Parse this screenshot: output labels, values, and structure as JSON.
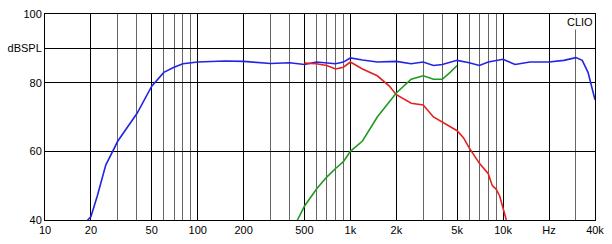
{
  "chart_data": {
    "type": "line",
    "log": "x",
    "grid": true,
    "xlim": [
      10,
      40000
    ],
    "xticks": [
      10,
      20,
      50,
      100,
      200,
      500,
      {
        "value": 1000,
        "label": "1k"
      },
      {
        "value": 2000,
        "label": "2k"
      },
      {
        "value": 5000,
        "label": "5k"
      },
      {
        "value": 10000,
        "label": "10k"
      },
      {
        "value": 20000,
        "label": "Hz"
      },
      {
        "value": 40000,
        "label": "40k"
      }
    ],
    "ylim": [
      40,
      100
    ],
    "yticks": [
      40,
      60,
      80,
      {
        "value": 90,
        "label": "dBSPL"
      },
      100
    ],
    "annotations": [
      {
        "text": "CLIO"
      }
    ],
    "series": [
      {
        "color": "#2323e6",
        "x": [
          19,
          20,
          22,
          25,
          30,
          40,
          50,
          60,
          70,
          80,
          100,
          150,
          200,
          300,
          400,
          500,
          600,
          700,
          800,
          900,
          1000,
          1200,
          1500,
          2000,
          2500,
          3000,
          3500,
          4000,
          5000,
          6000,
          7000,
          8000,
          10000,
          12000,
          15000,
          20000,
          25000,
          30000,
          33000,
          36000,
          40000
        ],
        "values": [
          40,
          41,
          47,
          56,
          63,
          71,
          79,
          83,
          84.5,
          85.5,
          86,
          86.3,
          86.2,
          85.6,
          85.8,
          85.3,
          86,
          85.8,
          85.5,
          86,
          87.2,
          86.6,
          86,
          86.2,
          85.5,
          86,
          85,
          85.3,
          86.5,
          85.8,
          85,
          86,
          86.8,
          85.3,
          86,
          86,
          86.5,
          87.3,
          86.5,
          83,
          75
        ]
      },
      {
        "color": "#e62020",
        "x": [
          500,
          600,
          700,
          800,
          900,
          1000,
          1200,
          1500,
          1800,
          2000,
          2500,
          3000,
          3500,
          4000,
          5000,
          5500,
          6000,
          7000,
          7500,
          8000,
          8500,
          9000,
          9500,
          10000,
          10500
        ],
        "values": [
          85.7,
          85.5,
          85,
          84,
          84.5,
          86,
          84,
          82,
          79,
          76.5,
          74,
          73.5,
          70,
          68.5,
          66,
          64,
          61,
          56.5,
          55,
          53.5,
          50,
          49,
          47,
          43,
          40
        ]
      },
      {
        "color": "#229922",
        "x": [
          450,
          500,
          600,
          700,
          800,
          900,
          1000,
          1200,
          1500,
          2000,
          2500,
          3000,
          3500,
          4000,
          4500,
          5000
        ],
        "values": [
          40,
          44,
          49,
          52.5,
          55,
          57,
          60,
          63,
          70,
          77,
          81,
          82,
          81,
          81,
          83,
          85
        ]
      }
    ]
  }
}
